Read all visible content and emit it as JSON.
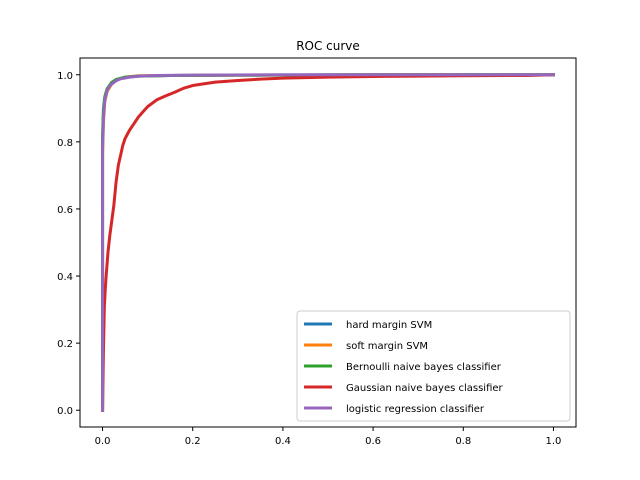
{
  "chart_data": {
    "type": "line",
    "title": "ROC curve",
    "xlabel": "",
    "ylabel": "",
    "xlim": [
      -0.05,
      1.05
    ],
    "ylim": [
      -0.05,
      1.05
    ],
    "xticks": [
      0.0,
      0.2,
      0.4,
      0.6,
      0.8,
      1.0
    ],
    "yticks": [
      0.0,
      0.2,
      0.4,
      0.6,
      0.8,
      1.0
    ],
    "xtick_labels": [
      "0.0",
      "0.2",
      "0.4",
      "0.6",
      "0.8",
      "1.0"
    ],
    "ytick_labels": [
      "0.0",
      "0.2",
      "0.4",
      "0.6",
      "0.8",
      "1.0"
    ],
    "grid": false,
    "legend_position": "lower-right",
    "series": [
      {
        "name": "hard margin SVM",
        "color": "#1f77b4",
        "points": [
          [
            0,
            0
          ],
          [
            0,
            0.8
          ],
          [
            0.002,
            0.88
          ],
          [
            0.005,
            0.93
          ],
          [
            0.01,
            0.955
          ],
          [
            0.02,
            0.975
          ],
          [
            0.03,
            0.985
          ],
          [
            0.05,
            0.992
          ],
          [
            0.08,
            0.996
          ],
          [
            0.15,
            0.998
          ],
          [
            0.3,
            0.999
          ],
          [
            0.6,
            1.0
          ],
          [
            1.0,
            1.0
          ]
        ]
      },
      {
        "name": "soft margin SVM",
        "color": "#ff7f0e",
        "points": [
          [
            0,
            0
          ],
          [
            0,
            0.76
          ],
          [
            0.002,
            0.86
          ],
          [
            0.005,
            0.92
          ],
          [
            0.01,
            0.95
          ],
          [
            0.02,
            0.972
          ],
          [
            0.03,
            0.984
          ],
          [
            0.05,
            0.993
          ],
          [
            0.08,
            0.997
          ],
          [
            0.15,
            0.998
          ],
          [
            0.3,
            0.999
          ],
          [
            0.6,
            1.0
          ],
          [
            1.0,
            1.0
          ]
        ]
      },
      {
        "name": "Bernoulli naive bayes classifier",
        "color": "#2ca02c",
        "points": [
          [
            0,
            0
          ],
          [
            0,
            0.82
          ],
          [
            0.002,
            0.9
          ],
          [
            0.005,
            0.935
          ],
          [
            0.01,
            0.958
          ],
          [
            0.02,
            0.977
          ],
          [
            0.03,
            0.986
          ],
          [
            0.05,
            0.993
          ],
          [
            0.08,
            0.996
          ],
          [
            0.15,
            0.998
          ],
          [
            0.3,
            0.999
          ],
          [
            0.6,
            1.0
          ],
          [
            1.0,
            1.0
          ]
        ]
      },
      {
        "name": "Gaussian naive bayes classifier",
        "color": "#d62728",
        "points": [
          [
            0,
            0
          ],
          [
            0.002,
            0.18
          ],
          [
            0.004,
            0.31
          ],
          [
            0.006,
            0.36
          ],
          [
            0.008,
            0.4
          ],
          [
            0.012,
            0.47
          ],
          [
            0.016,
            0.52
          ],
          [
            0.02,
            0.56
          ],
          [
            0.025,
            0.61
          ],
          [
            0.03,
            0.68
          ],
          [
            0.035,
            0.73
          ],
          [
            0.04,
            0.76
          ],
          [
            0.045,
            0.79
          ],
          [
            0.05,
            0.81
          ],
          [
            0.06,
            0.835
          ],
          [
            0.07,
            0.855
          ],
          [
            0.08,
            0.875
          ],
          [
            0.09,
            0.89
          ],
          [
            0.1,
            0.905
          ],
          [
            0.12,
            0.925
          ],
          [
            0.14,
            0.937
          ],
          [
            0.16,
            0.948
          ],
          [
            0.18,
            0.96
          ],
          [
            0.2,
            0.968
          ],
          [
            0.22,
            0.972
          ],
          [
            0.25,
            0.978
          ],
          [
            0.3,
            0.983
          ],
          [
            0.35,
            0.987
          ],
          [
            0.4,
            0.99
          ],
          [
            0.5,
            0.993
          ],
          [
            0.6,
            0.995
          ],
          [
            0.7,
            0.996
          ],
          [
            0.8,
            0.997
          ],
          [
            0.9,
            0.998
          ],
          [
            0.94,
            0.998
          ],
          [
            1.0,
            1.0
          ]
        ]
      },
      {
        "name": "logistic regression classifier",
        "color": "#9467bd",
        "points": [
          [
            0,
            0
          ],
          [
            0,
            0.78
          ],
          [
            0.002,
            0.87
          ],
          [
            0.005,
            0.925
          ],
          [
            0.01,
            0.952
          ],
          [
            0.015,
            0.965
          ],
          [
            0.02,
            0.972
          ],
          [
            0.03,
            0.982
          ],
          [
            0.04,
            0.988
          ],
          [
            0.06,
            0.993
          ],
          [
            0.08,
            0.996
          ],
          [
            0.12,
            0.998
          ],
          [
            0.2,
            0.999
          ],
          [
            0.4,
            1.0
          ],
          [
            1.0,
            1.0
          ]
        ]
      }
    ]
  }
}
